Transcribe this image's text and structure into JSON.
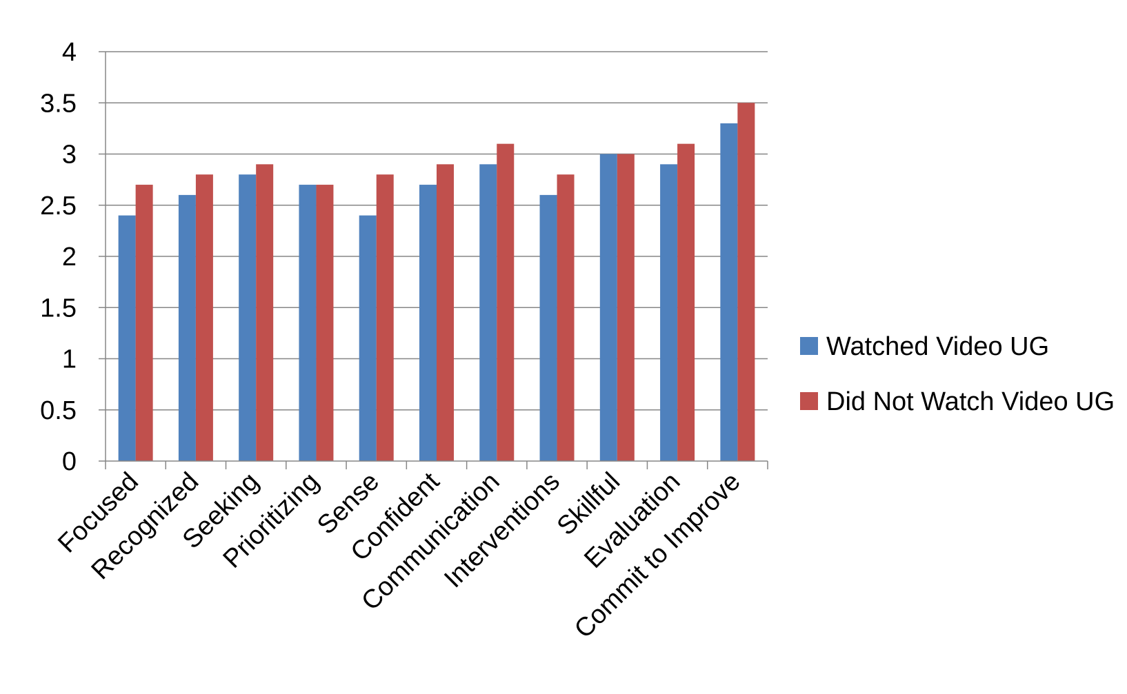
{
  "chart_data": {
    "type": "bar",
    "title": "",
    "xlabel": "",
    "ylabel": "",
    "ylim": [
      0,
      4
    ],
    "yticks": [
      "0",
      "0.5",
      "1",
      "1.5",
      "2",
      "2.5",
      "3",
      "3.5",
      "4"
    ],
    "grid": true,
    "legend_position": "right",
    "categories": [
      "Focused",
      "Recognized",
      "Seeking",
      "Prioritizing",
      "Sense",
      "Confident",
      "Communication",
      "Interventions",
      "Skillful",
      "Evaluation",
      "Commit to Improve"
    ],
    "series": [
      {
        "name": "Watched Video UG",
        "color": "#4F81BD",
        "values": [
          2.4,
          2.6,
          2.8,
          2.7,
          2.4,
          2.7,
          2.9,
          2.6,
          3.0,
          2.9,
          3.3
        ]
      },
      {
        "name": "Did Not Watch Video UG",
        "color": "#C0504D",
        "values": [
          2.7,
          2.8,
          2.9,
          2.7,
          2.8,
          2.9,
          3.1,
          2.8,
          3.0,
          3.1,
          3.5
        ]
      }
    ]
  }
}
